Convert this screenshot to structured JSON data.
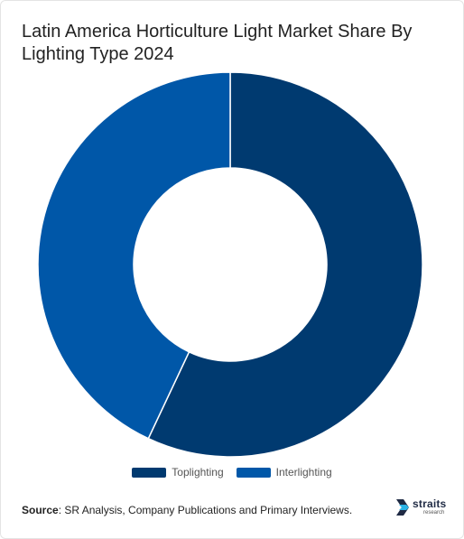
{
  "title": "Latin America Horticulture Light Market Share By Lighting Type 2024",
  "source": {
    "label": "Source",
    "text": ": SR Analysis, Company Publications and Primary Interviews."
  },
  "logo": {
    "word": "straits",
    "sub": "research",
    "icon": "straits-arrow-icon"
  },
  "colors": {
    "Toplighting": "#003a70",
    "Interlighting": "#0057a8",
    "separator": "#ffffff"
  },
  "chart_data": {
    "type": "pie",
    "variant": "donut",
    "title": "Latin America Horticulture Light Market Share By Lighting Type 2024",
    "categories": [
      "Toplighting",
      "Interlighting"
    ],
    "values": [
      57,
      43
    ],
    "legend": "bottom",
    "start_angle": "12 o'clock",
    "direction": "clockwise"
  }
}
